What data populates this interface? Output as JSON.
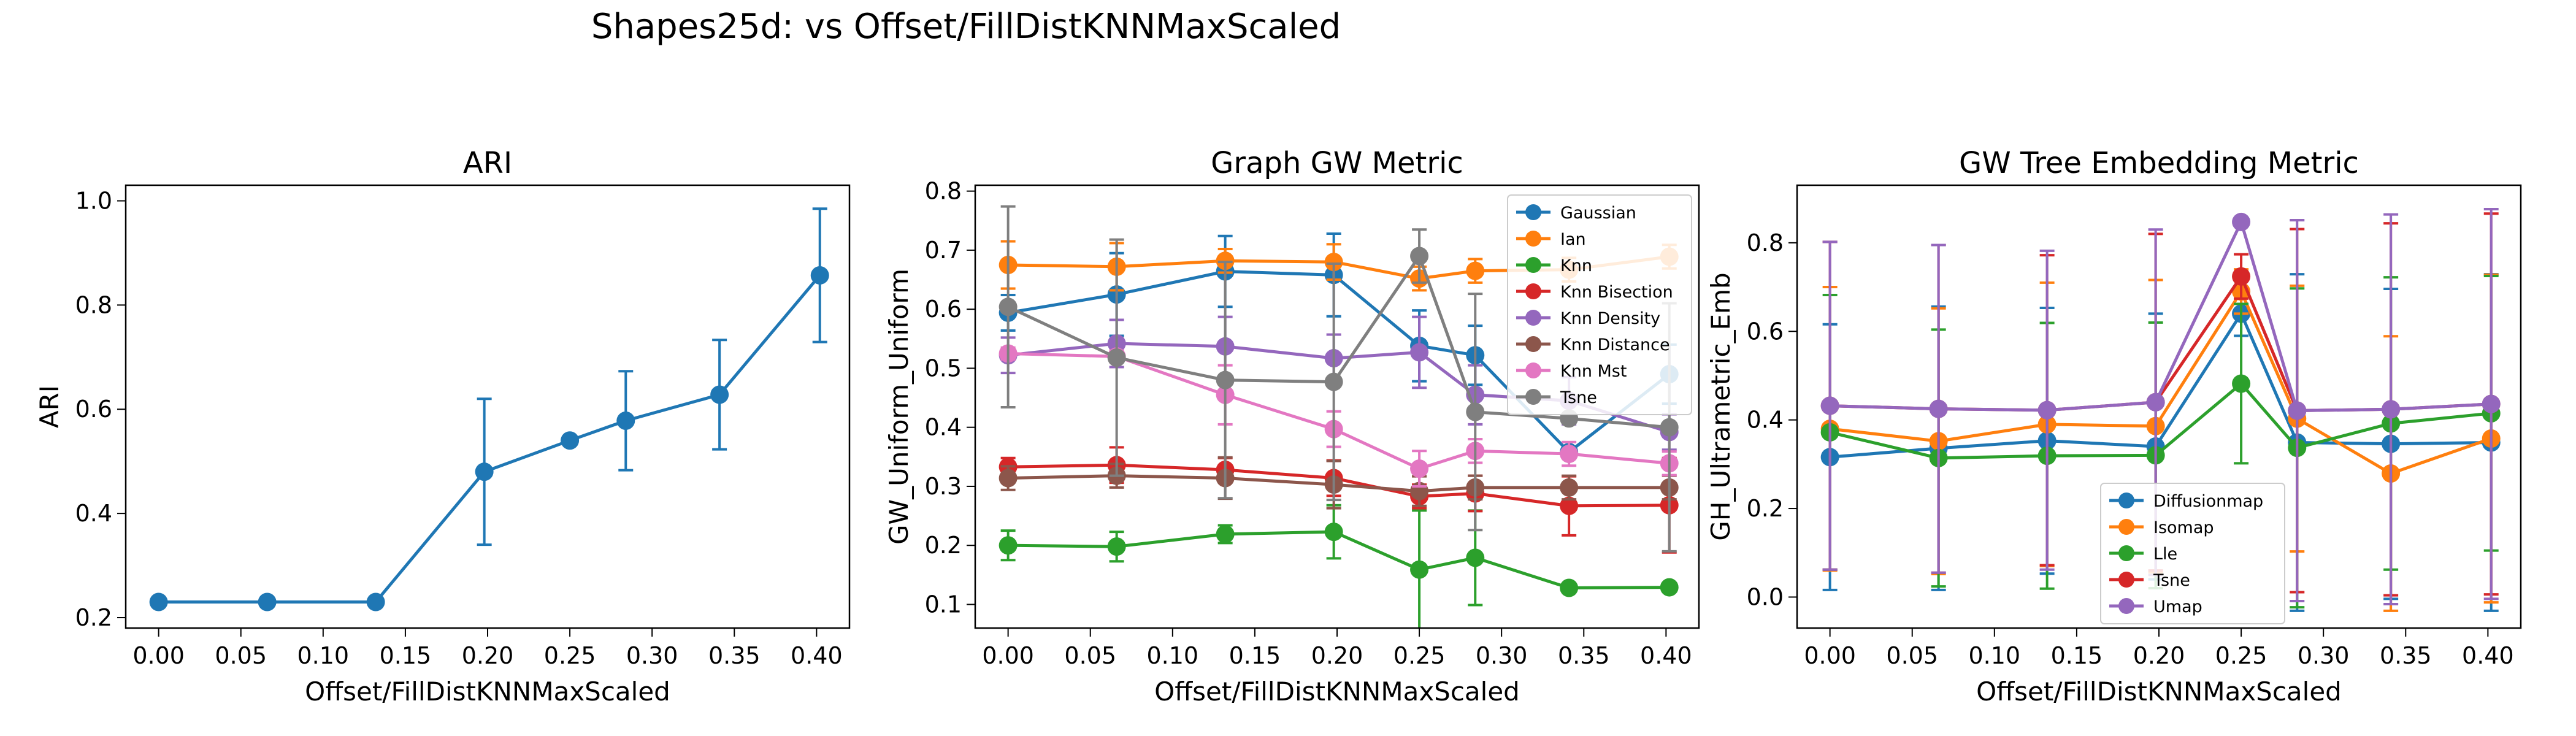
{
  "figure": {
    "title": "Shapes25d: vs Offset/FillDistKNNMaxScaled"
  },
  "chart_data": [
    {
      "type": "line",
      "title": "ARI",
      "xlabel": "Offset/FillDistKNNMaxScaled",
      "ylabel": "ARI",
      "xlim": [
        -0.02,
        0.42
      ],
      "ylim": [
        0.18,
        1.03
      ],
      "xticks": [
        0.0,
        0.05,
        0.1,
        0.15,
        0.2,
        0.25,
        0.3,
        0.35,
        0.4
      ],
      "xticklabels": [
        "0.00",
        "0.05",
        "0.10",
        "0.15",
        "0.20",
        "0.25",
        "0.30",
        "0.35",
        "0.40"
      ],
      "yticks": [
        0.2,
        0.4,
        0.6,
        0.8,
        1.0
      ],
      "yticklabels": [
        "0.2",
        "0.4",
        "0.6",
        "0.8",
        "1.0"
      ],
      "grid": false,
      "x": [
        0.0,
        0.066,
        0.132,
        0.198,
        0.25,
        0.284,
        0.341,
        0.402
      ],
      "series": [
        {
          "color": "#1f77b4",
          "values": [
            0.23,
            0.23,
            0.23,
            0.48,
            0.54,
            0.578,
            0.628,
            0.857
          ],
          "errors": [
            0.0,
            0.0,
            0.0,
            0.14,
            0.0,
            0.095,
            0.105,
            0.128
          ]
        }
      ]
    },
    {
      "type": "line",
      "title": "Graph GW Metric",
      "xlabel": "Offset/FillDistKNNMaxScaled",
      "ylabel": "GW_Uniform_Uniform",
      "xlim": [
        -0.02,
        0.42
      ],
      "ylim": [
        0.06,
        0.81
      ],
      "xticks": [
        0.0,
        0.05,
        0.1,
        0.15,
        0.2,
        0.25,
        0.3,
        0.35,
        0.4
      ],
      "xticklabels": [
        "0.00",
        "0.05",
        "0.10",
        "0.15",
        "0.20",
        "0.25",
        "0.30",
        "0.35",
        "0.40"
      ],
      "yticks": [
        0.1,
        0.2,
        0.3,
        0.4,
        0.5,
        0.6,
        0.7,
        0.8
      ],
      "yticklabels": [
        "0.1",
        "0.2",
        "0.3",
        "0.4",
        "0.5",
        "0.6",
        "0.7",
        "0.8"
      ],
      "grid": false,
      "legend": "upper right",
      "x": [
        0.0,
        0.066,
        0.132,
        0.198,
        0.25,
        0.284,
        0.341,
        0.402
      ],
      "series": [
        {
          "name": "Gaussian",
          "color": "#1f77b4",
          "values": [
            0.594,
            0.625,
            0.664,
            0.658,
            0.538,
            0.522,
            0.358,
            0.49
          ],
          "errors": [
            0.03,
            0.07,
            0.06,
            0.07,
            0.06,
            0.05,
            0.0,
            0.05
          ]
        },
        {
          "name": "Ian",
          "color": "#ff7f0e",
          "values": [
            0.675,
            0.672,
            0.682,
            0.68,
            0.652,
            0.665,
            0.667,
            0.689
          ],
          "errors": [
            0.04,
            0.04,
            0.02,
            0.03,
            0.02,
            0.02,
            0.02,
            0.02
          ]
        },
        {
          "name": "Knn",
          "color": "#2ca02c",
          "values": [
            0.2,
            0.198,
            0.219,
            0.223,
            0.159,
            0.179,
            0.128,
            0.129
          ],
          "errors": [
            0.025,
            0.025,
            0.015,
            0.045,
            0.1,
            0.08,
            0.0,
            0.0
          ]
        },
        {
          "name": "Knn Bisection",
          "color": "#d62728",
          "values": [
            0.333,
            0.336,
            0.328,
            0.314,
            0.283,
            0.288,
            0.267,
            0.268
          ],
          "errors": [
            0.015,
            0.03,
            0.02,
            0.03,
            0.02,
            0.03,
            0.05,
            0.08
          ]
        },
        {
          "name": "Knn Density",
          "color": "#9467bd",
          "values": [
            0.522,
            0.542,
            0.537,
            0.517,
            0.527,
            0.455,
            0.445,
            0.392
          ],
          "errors": [
            0.03,
            0.04,
            0.05,
            0.04,
            0.06,
            0.05,
            0.04,
            0.03
          ]
        },
        {
          "name": "Knn Distance",
          "color": "#8c564b",
          "values": [
            0.314,
            0.318,
            0.314,
            0.303,
            0.292,
            0.298,
            0.298,
            0.298
          ],
          "errors": [
            0.02,
            0.02,
            0.035,
            0.04,
            0.025,
            0.02,
            0.02,
            0.02
          ]
        },
        {
          "name": "Knn Mst",
          "color": "#e377c2",
          "values": [
            0.525,
            0.52,
            0.455,
            0.397,
            0.33,
            0.36,
            0.355,
            0.339
          ],
          "errors": [
            0.01,
            0.01,
            0.05,
            0.03,
            0.03,
            0.02,
            0.02,
            0.02
          ]
        },
        {
          "name": "Tsne",
          "color": "#7f7f7f",
          "values": [
            0.604,
            0.518,
            0.48,
            0.477,
            0.69,
            0.426,
            0.415,
            0.4
          ],
          "errors": [
            0.17,
            0.2,
            0.2,
            0.2,
            0.045,
            0.2,
            0.0,
            0.21
          ]
        }
      ]
    },
    {
      "type": "line",
      "title": "GW Tree Embedding Metric",
      "xlabel": "Offset/FillDistKNNMaxScaled",
      "ylabel": "GH_Ultrametric_Emb",
      "xlim": [
        -0.02,
        0.42
      ],
      "ylim": [
        -0.07,
        0.93
      ],
      "xticks": [
        0.0,
        0.05,
        0.1,
        0.15,
        0.2,
        0.25,
        0.3,
        0.35,
        0.4
      ],
      "xticklabels": [
        "0.00",
        "0.05",
        "0.10",
        "0.15",
        "0.20",
        "0.25",
        "0.30",
        "0.35",
        "0.40"
      ],
      "yticks": [
        0.0,
        0.2,
        0.4,
        0.6,
        0.8
      ],
      "yticklabels": [
        "0.0",
        "0.2",
        "0.4",
        "0.6",
        "0.8"
      ],
      "grid": false,
      "legend": "lower center",
      "x": [
        0.0,
        0.066,
        0.132,
        0.198,
        0.25,
        0.284,
        0.341,
        0.402
      ],
      "series": [
        {
          "name": "Diffusionmap",
          "color": "#1f77b4",
          "values": [
            0.316,
            0.336,
            0.353,
            0.34,
            0.64,
            0.349,
            0.346,
            0.349
          ],
          "errors": [
            0.3,
            0.32,
            0.3,
            0.3,
            0.05,
            0.38,
            0.35,
            0.38
          ]
        },
        {
          "name": "Isomap",
          "color": "#ff7f0e",
          "values": [
            0.38,
            0.352,
            0.39,
            0.386,
            0.69,
            0.403,
            0.279,
            0.358
          ],
          "errors": [
            0.32,
            0.3,
            0.32,
            0.33,
            0.05,
            0.3,
            0.31,
            0.37
          ]
        },
        {
          "name": "Lle",
          "color": "#2ca02c",
          "values": [
            0.372,
            0.314,
            0.319,
            0.32,
            0.482,
            0.337,
            0.392,
            0.415
          ],
          "errors": [
            0.31,
            0.29,
            0.3,
            0.3,
            0.18,
            0.36,
            0.33,
            0.31
          ]
        },
        {
          "name": "Tsne",
          "color": "#d62728",
          "values": [
            0.432,
            0.425,
            0.422,
            0.44,
            0.724,
            0.421,
            0.424,
            0.436
          ],
          "errors": [
            0.37,
            0.37,
            0.35,
            0.38,
            0.05,
            0.41,
            0.42,
            0.43
          ]
        },
        {
          "name": "Umap",
          "color": "#9467bd",
          "values": [
            0.432,
            0.425,
            0.422,
            0.44,
            0.847,
            0.421,
            0.424,
            0.436
          ],
          "errors": [
            0.37,
            0.37,
            0.36,
            0.39,
            0.0,
            0.43,
            0.44,
            0.44
          ]
        }
      ]
    }
  ]
}
